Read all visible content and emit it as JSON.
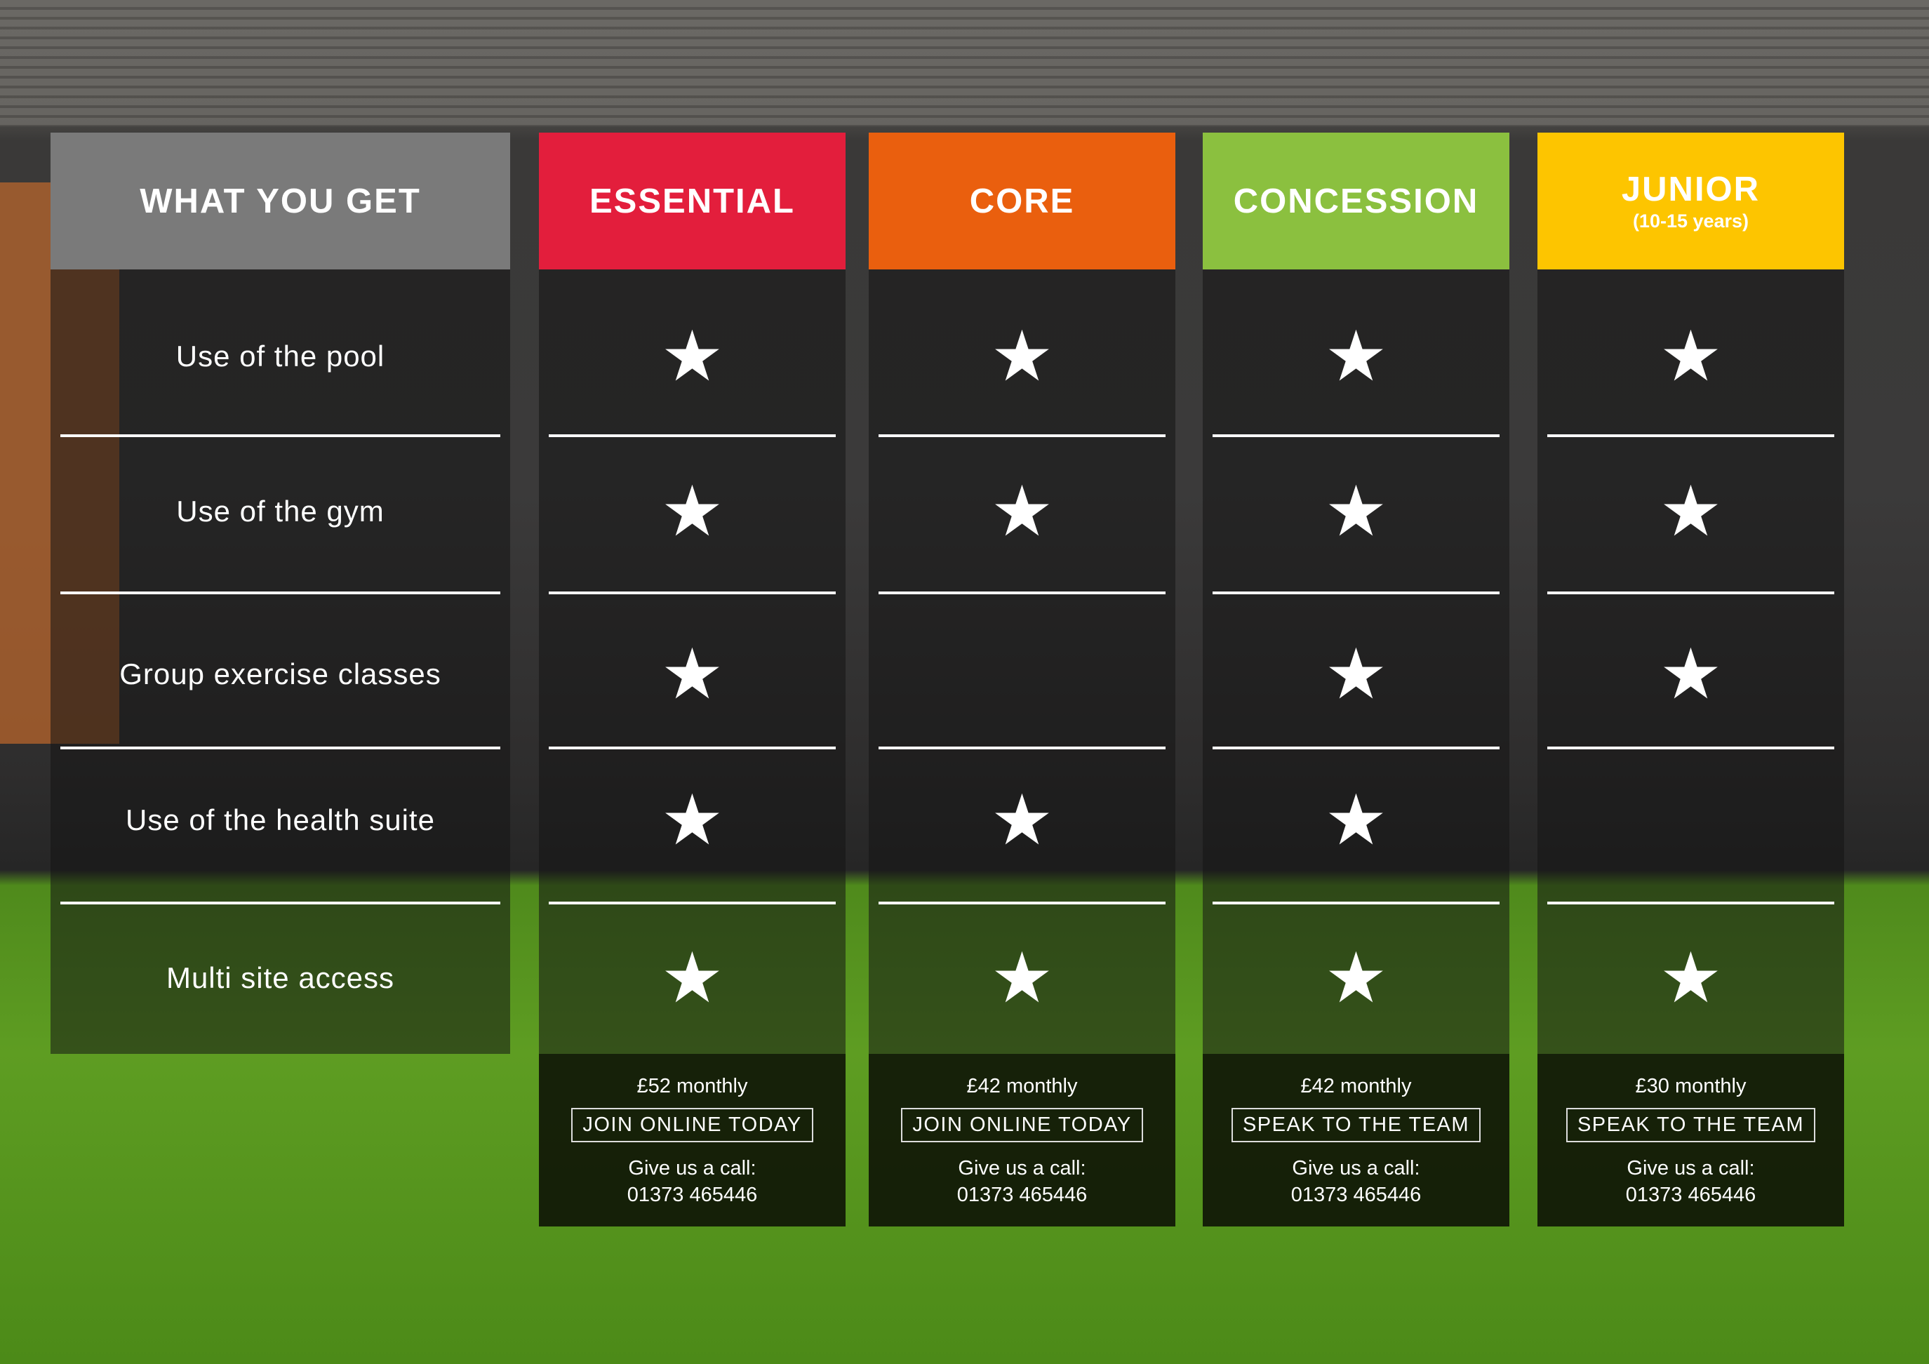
{
  "features": {
    "header": "WHAT YOU GET",
    "rows": [
      "Use of the pool",
      "Use of the gym",
      "Group exercise classes",
      "Use of the health suite",
      "Multi site access"
    ]
  },
  "plans": [
    {
      "name": "ESSENTIAL",
      "subtitle": "",
      "color": "#e31e3c",
      "price": "£52 monthly",
      "cta": "JOIN ONLINE TODAY",
      "call_label": "Give us a call:",
      "phone": "01373 465446",
      "included": [
        true,
        true,
        true,
        true,
        true
      ],
      "star_icon": "star"
    },
    {
      "name": "CORE",
      "subtitle": "",
      "color": "#ea5f0e",
      "price": "£42 monthly",
      "cta": "JOIN ONLINE TODAY",
      "call_label": "Give us a call:",
      "phone": "01373 465446",
      "included": [
        true,
        true,
        false,
        true,
        true
      ],
      "star_icon": "star"
    },
    {
      "name": "CONCESSION",
      "subtitle": "",
      "color": "#8bc03f",
      "price": "£42 monthly",
      "cta": "SPEAK TO THE TEAM",
      "call_label": "Give us a call:",
      "phone": "01373 465446",
      "included": [
        true,
        true,
        true,
        true,
        true
      ],
      "star_icon": "star"
    },
    {
      "name": "JUNIOR",
      "subtitle": "(10-15 years)",
      "color": "#fdc500",
      "price": "£30 monthly",
      "cta": "SPEAK TO THE TEAM",
      "call_label": "Give us a call:",
      "phone": "01373 465446",
      "included": [
        true,
        true,
        true,
        false,
        true
      ],
      "star_icon": "star"
    }
  ],
  "feature_header_color": "#7a7a7a"
}
